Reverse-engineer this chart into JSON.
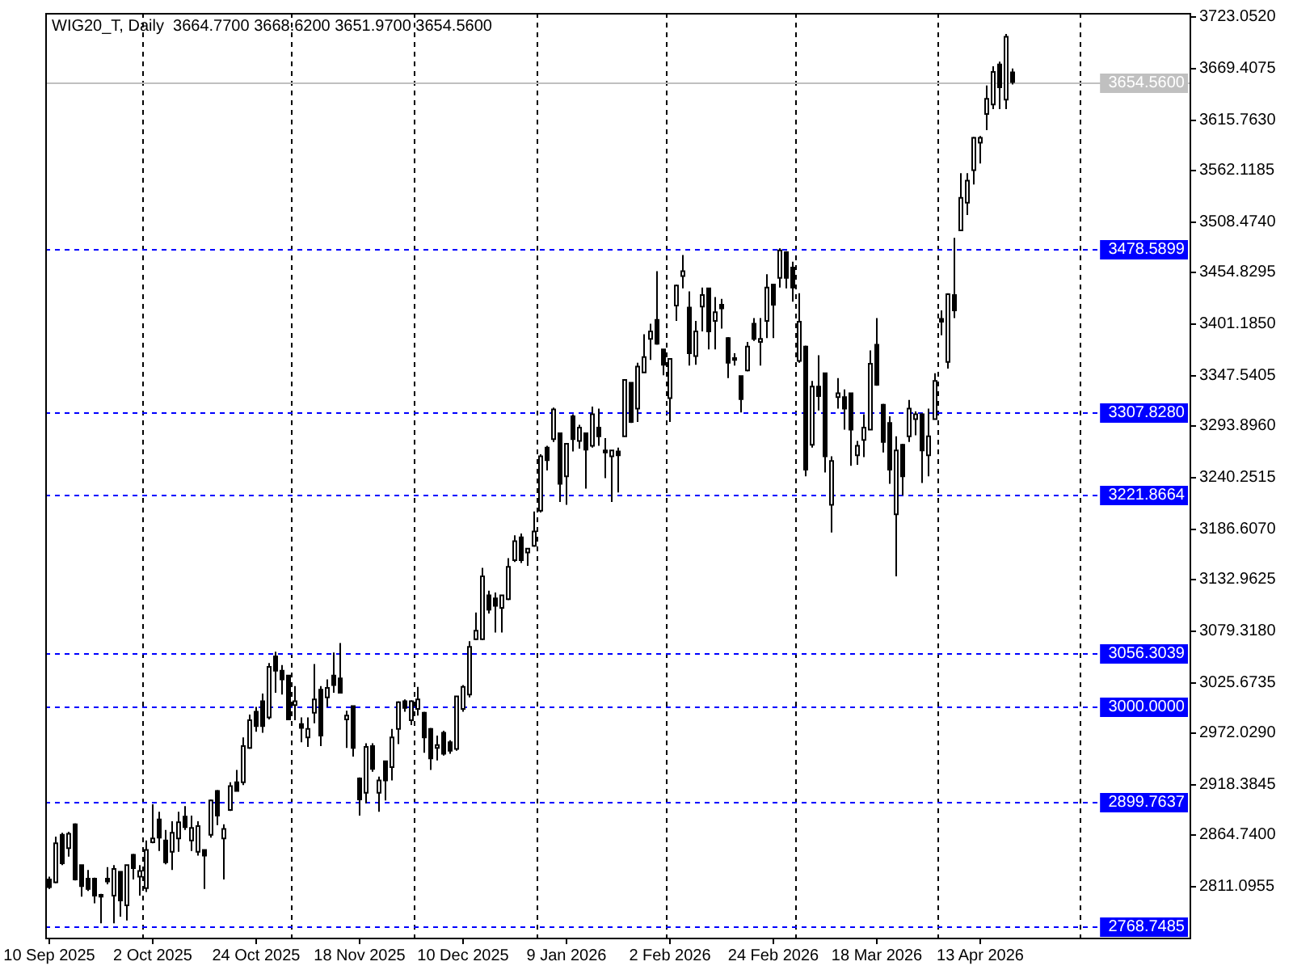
{
  "chart_data": {
    "type": "candlestick",
    "title": "WIG20_T, Daily  3664.7700 3668.6200 3651.9700 3654.5600",
    "color": "#000000",
    "categories": [
      "10 Sep 2025",
      null,
      null,
      null,
      null,
      null,
      null,
      null,
      null,
      null,
      null,
      null,
      null,
      null,
      null,
      null,
      "2 Oct 2025",
      null,
      null,
      null,
      null,
      null,
      null,
      null,
      null,
      null,
      null,
      null,
      null,
      null,
      null,
      null,
      "24 Oct 2025",
      null,
      null,
      null,
      null,
      null,
      null,
      null,
      null,
      null,
      null,
      null,
      null,
      null,
      null,
      null,
      "18 Nov 2025",
      null,
      null,
      null,
      null,
      null,
      null,
      null,
      null,
      null,
      null,
      null,
      null,
      null,
      null,
      null,
      "10 Dec 2025",
      null,
      null,
      null,
      null,
      null,
      null,
      null,
      null,
      null,
      null,
      null,
      null,
      null,
      null,
      null,
      "9 Jan 2026",
      null,
      null,
      null,
      null,
      null,
      null,
      null,
      null,
      null,
      null,
      null,
      null,
      null,
      null,
      null,
      "2 Feb 2026",
      null,
      null,
      null,
      null,
      null,
      null,
      null,
      null,
      null,
      null,
      null,
      null,
      null,
      null,
      null,
      "24 Feb 2026",
      null,
      null,
      null,
      null,
      null,
      null,
      null,
      null,
      null,
      null,
      null,
      null,
      null,
      null,
      null,
      "18 Mar 2026",
      null,
      null,
      null,
      null,
      null,
      null,
      null,
      null,
      null,
      null,
      null,
      null,
      null,
      null,
      null,
      "13 Apr 2026",
      null,
      null,
      null,
      null,
      null,
      null,
      null,
      null,
      null,
      null,
      null,
      null,
      null,
      null,
      null,
      null,
      null,
      null,
      null,
      null,
      null,
      null,
      null,
      null,
      null,
      null,
      null,
      null,
      null,
      null,
      null,
      null
    ],
    "ohlc": [
      [
        2818,
        2821,
        2808,
        2810
      ],
      [
        2815,
        2863,
        2814,
        2856
      ],
      [
        2865,
        2867,
        2833,
        2835
      ],
      [
        2851,
        2868,
        2842,
        2866
      ],
      [
        2876,
        2877,
        2817,
        2818
      ],
      [
        2833,
        2833,
        2800,
        2811
      ],
      [
        2819,
        2828,
        2806,
        2808
      ],
      [
        2819,
        2820,
        2793,
        2801
      ],
      [
        2802,
        2803,
        2772,
        2800
      ],
      [
        2819,
        2831,
        2813,
        2816
      ],
      [
        2801,
        2833,
        2772,
        2829
      ],
      [
        2826,
        2827,
        2779,
        2796
      ],
      [
        2791,
        2834,
        2775,
        2833
      ],
      [
        2844,
        2845,
        2818,
        2830
      ],
      [
        2821,
        2833,
        2801,
        2827
      ],
      [
        2809,
        2859,
        2805,
        2849
      ],
      [
        2857,
        2897,
        2856,
        2861
      ],
      [
        2881,
        2889,
        2848,
        2862
      ],
      [
        2859,
        2870,
        2834,
        2836
      ],
      [
        2847,
        2879,
        2828,
        2867
      ],
      [
        2861,
        2889,
        2847,
        2878
      ],
      [
        2884,
        2895,
        2870,
        2873
      ],
      [
        2859,
        2885,
        2848,
        2872
      ],
      [
        2847,
        2879,
        2843,
        2874
      ],
      [
        2849,
        2849,
        2808,
        2843
      ],
      [
        2865,
        2902,
        2862,
        2901
      ],
      [
        2911,
        2912,
        2875,
        2885
      ],
      [
        2861,
        2876,
        2818,
        2871
      ],
      [
        2891,
        2920,
        2890,
        2916
      ],
      [
        2920,
        2933,
        2910,
        2911
      ],
      [
        2920,
        2967,
        2917,
        2958
      ],
      [
        2956,
        2991,
        2955,
        2985
      ],
      [
        2994,
        2999,
        2973,
        2979
      ],
      [
        3005,
        3013,
        2972,
        2979
      ],
      [
        2988,
        3045,
        2986,
        3041
      ],
      [
        3052,
        3057,
        3014,
        3037
      ],
      [
        3037,
        3043,
        3012,
        3028
      ],
      [
        3032,
        3032,
        2985,
        2986
      ],
      [
        3001,
        3021,
        2985,
        3005
      ],
      [
        2981,
        2988,
        2962,
        2977
      ],
      [
        2967,
        2988,
        2957,
        2976
      ],
      [
        2993,
        3044,
        2982,
        3007
      ],
      [
        3017,
        3021,
        2958,
        2969
      ],
      [
        3009,
        3028,
        2999,
        3019
      ],
      [
        3032,
        3056,
        3014,
        3022
      ],
      [
        3029,
        3066,
        3013,
        3014
      ],
      [
        2986,
        2995,
        2956,
        2990
      ],
      [
        3000,
        3000,
        2947,
        2956
      ],
      [
        2924,
        2925,
        2885,
        2902
      ],
      [
        2909,
        2961,
        2898,
        2957
      ],
      [
        2958,
        2961,
        2931,
        2934
      ],
      [
        2909,
        2926,
        2889,
        2922
      ],
      [
        2942,
        2943,
        2901,
        2922
      ],
      [
        2936,
        2976,
        2922,
        2967
      ],
      [
        2976,
        3005,
        2960,
        3004
      ],
      [
        3005,
        3007,
        2994,
        2998
      ],
      [
        2985,
        3006,
        2980,
        3005
      ],
      [
        2997,
        3020,
        2990,
        3007
      ],
      [
        2993,
        2994,
        2951,
        2967
      ],
      [
        2976,
        2977,
        2933,
        2945
      ],
      [
        2956,
        2969,
        2943,
        2959
      ],
      [
        2972,
        2974,
        2948,
        2950
      ],
      [
        2962,
        2964,
        2950,
        2953
      ],
      [
        2955,
        3011,
        2953,
        3010
      ],
      [
        2997,
        3022,
        2994,
        3020
      ],
      [
        3012,
        3068,
        3009,
        3062
      ],
      [
        3070,
        3098,
        3069,
        3079
      ],
      [
        3070,
        3145,
        3069,
        3136
      ],
      [
        3116,
        3121,
        3097,
        3101
      ],
      [
        3113,
        3119,
        3077,
        3105
      ],
      [
        3103,
        3117,
        3077,
        3116
      ],
      [
        3112,
        3155,
        3111,
        3146
      ],
      [
        3153,
        3179,
        3151,
        3173
      ],
      [
        3177,
        3181,
        3150,
        3153
      ],
      [
        3161,
        3166,
        3147,
        3165
      ],
      [
        3168,
        3204,
        3167,
        3183
      ],
      [
        3205,
        3264,
        3203,
        3262
      ],
      [
        3271,
        3273,
        3247,
        3258
      ],
      [
        3280,
        3313,
        3277,
        3311
      ],
      [
        3286,
        3287,
        3214,
        3233
      ],
      [
        3241,
        3276,
        3211,
        3275
      ],
      [
        3304,
        3306,
        3267,
        3280
      ],
      [
        3278,
        3295,
        3270,
        3292
      ],
      [
        3286,
        3287,
        3228,
        3269
      ],
      [
        3273,
        3314,
        3271,
        3306
      ],
      [
        3292,
        3312,
        3273,
        3283
      ],
      [
        3268,
        3281,
        3239,
        3266
      ],
      [
        3262,
        3269,
        3214,
        3268
      ],
      [
        3267,
        3271,
        3224,
        3263
      ],
      [
        3283,
        3343,
        3282,
        3342
      ],
      [
        3339,
        3340,
        3297,
        3298
      ],
      [
        3312,
        3360,
        3298,
        3356
      ],
      [
        3350,
        3390,
        3349,
        3366
      ],
      [
        3385,
        3401,
        3363,
        3393
      ],
      [
        3405,
        3456,
        3379,
        3380
      ],
      [
        3374,
        3375,
        3347,
        3358
      ],
      [
        3323,
        3365,
        3298,
        3364
      ],
      [
        3420,
        3442,
        3404,
        3441
      ],
      [
        3451,
        3473,
        3438,
        3456
      ],
      [
        3418,
        3435,
        3357,
        3370
      ],
      [
        3367,
        3404,
        3358,
        3393
      ],
      [
        3419,
        3439,
        3393,
        3431
      ],
      [
        3438,
        3439,
        3374,
        3393
      ],
      [
        3404,
        3429,
        3374,
        3413
      ],
      [
        3421,
        3427,
        3396,
        3417
      ],
      [
        3386,
        3387,
        3344,
        3360
      ],
      [
        3365,
        3370,
        3357,
        3363
      ],
      [
        3346,
        3347,
        3308,
        3322
      ],
      [
        3352,
        3382,
        3351,
        3377
      ],
      [
        3401,
        3407,
        3383,
        3385
      ],
      [
        3382,
        3407,
        3357,
        3385
      ],
      [
        3404,
        3453,
        3386,
        3439
      ],
      [
        3442,
        3443,
        3386,
        3421
      ],
      [
        3449,
        3480,
        3439,
        3478
      ],
      [
        3476,
        3477,
        3438,
        3449
      ],
      [
        3460,
        3466,
        3424,
        3439
      ],
      [
        3362,
        3433,
        3360,
        3403
      ],
      [
        3377,
        3378,
        3241,
        3248
      ],
      [
        3274,
        3341,
        3271,
        3335
      ],
      [
        3335,
        3368,
        3310,
        3325
      ],
      [
        3349,
        3350,
        3245,
        3262
      ],
      [
        3211,
        3262,
        3182,
        3257
      ],
      [
        3324,
        3344,
        3312,
        3328
      ],
      [
        3324,
        3332,
        3290,
        3312
      ],
      [
        3328,
        3329,
        3252,
        3290
      ],
      [
        3263,
        3278,
        3253,
        3273
      ],
      [
        3279,
        3306,
        3261,
        3292
      ],
      [
        3290,
        3373,
        3289,
        3359
      ],
      [
        3379,
        3407,
        3336,
        3337
      ],
      [
        3316,
        3317,
        3266,
        3277
      ],
      [
        3297,
        3304,
        3233,
        3248
      ],
      [
        3201,
        3283,
        3136,
        3268
      ],
      [
        3274,
        3275,
        3221,
        3241
      ],
      [
        3283,
        3321,
        3277,
        3312
      ],
      [
        3301,
        3309,
        3284,
        3306
      ],
      [
        3306,
        3307,
        3234,
        3268
      ],
      [
        3263,
        3312,
        3241,
        3283
      ],
      [
        3301,
        3349,
        3300,
        3341
      ],
      [
        3406,
        3415,
        3389,
        3403
      ],
      [
        3361,
        3433,
        3354,
        3432
      ],
      [
        3431,
        3491,
        3407,
        3415
      ],
      [
        3499,
        3559,
        3498,
        3533
      ],
      [
        3528,
        3559,
        3515,
        3551
      ],
      [
        3562,
        3597,
        3547,
        3596
      ],
      [
        3591,
        3598,
        3569,
        3596
      ],
      [
        3621,
        3651,
        3604,
        3637
      ],
      [
        3631,
        3671,
        3626,
        3665
      ],
      [
        3673,
        3676,
        3626,
        3649
      ],
      [
        3636,
        3705,
        3626,
        3702
      ],
      [
        3664.77,
        3668.62,
        3651.97,
        3654.56
      ],
      null,
      null,
      null,
      null,
      null,
      null,
      null,
      null,
      null,
      null,
      null,
      null,
      null,
      null,
      null,
      null,
      null,
      null,
      null,
      null,
      null,
      null,
      null,
      null,
      null,
      null,
      null
    ],
    "ylim": [
      2757,
      3727
    ],
    "yticks": [
      {
        "value": 3723.052,
        "label": "3723.0520"
      },
      3669.4075,
      {
        "value": 3615.763,
        "label": "3615.7630"
      },
      3562.1185,
      {
        "value": 3508.474,
        "label": "3508.4740"
      },
      3454.8295,
      {
        "value": 3401.185,
        "label": "3401.1850"
      },
      3347.5405,
      {
        "value": 3293.896,
        "label": "3293.8960"
      },
      3240.2515,
      {
        "value": 3186.607,
        "label": "3186.6070"
      },
      3132.9625,
      {
        "value": 3079.318,
        "label": "3079.3180"
      },
      3025.6735,
      {
        "value": 2972.029,
        "label": "2972.0290"
      },
      2918.3845,
      {
        "value": 2864.74,
        "label": "2864.7400"
      },
      2811.0955
    ],
    "ref_lines": [
      {
        "axis": "y",
        "value": 3654.56,
        "label": "3654.5600",
        "color": "#c0c0c0",
        "line_style": "solid"
      },
      {
        "axis": "y",
        "value": 3478.5899,
        "label": "3478.5899",
        "color": "#0000ff",
        "line_style": "dashed"
      },
      {
        "axis": "y",
        "value": 3307.828,
        "label": "3307.8280",
        "color": "#0000ff",
        "line_style": "dashed"
      },
      {
        "axis": "y",
        "value": 3221.8664,
        "label": "3221.8664",
        "color": "#0000ff",
        "line_style": "dashed"
      },
      {
        "axis": "y",
        "value": 3056.3039,
        "label": "3056.3039",
        "color": "#0000ff",
        "line_style": "dashed"
      },
      {
        "axis": "y",
        "value": 3000,
        "label": "3000.0000",
        "color": "#0000ff",
        "line_style": "dashed"
      },
      {
        "axis": "y",
        "value": 2899.7637,
        "label": "2899.7637",
        "color": "#0000ff",
        "line_style": "dashed"
      },
      {
        "axis": "y",
        "value": 2768.7485,
        "label": "2768.7485",
        "color": "#0000ff",
        "line_style": "dashed"
      }
    ]
  }
}
